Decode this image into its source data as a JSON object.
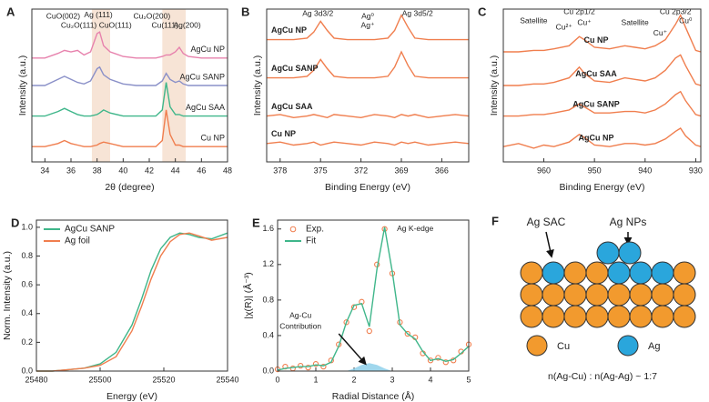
{
  "chart_data": [
    {
      "type": "line",
      "label": "A",
      "xlabel": "2θ (degree)",
      "ylabel": "Intensity (a.u.)",
      "legend": "inline",
      "xlim": [
        33,
        48
      ],
      "xticks": [
        34,
        36,
        38,
        40,
        42,
        44,
        46,
        48
      ],
      "ylim": [
        0,
        100
      ],
      "highlight_ranges": [
        [
          37.6,
          39.0
        ],
        [
          43.0,
          44.8
        ]
      ],
      "highlight_color": "#f7e4d6",
      "x": [
        33,
        34,
        35,
        35.5,
        36,
        36.5,
        37,
        37.5,
        38,
        38.2,
        38.5,
        39,
        40,
        41,
        42,
        42.5,
        43,
        43.3,
        43.6,
        44,
        44.3,
        44.6,
        45,
        46,
        47,
        48
      ],
      "series": [
        {
          "name": "AgCu NP",
          "color": "#e782ad",
          "values": [
            68,
            68,
            71,
            73,
            72,
            73,
            70,
            72,
            84,
            85,
            76,
            72,
            69,
            68,
            68,
            68,
            69,
            70,
            70,
            72,
            75,
            71,
            69,
            68,
            68,
            68
          ]
        },
        {
          "name": "AgCu SANP",
          "color": "#8a90c8",
          "values": [
            50,
            50,
            54,
            56,
            54,
            52,
            51,
            53,
            61,
            62,
            57,
            54,
            51,
            50,
            50,
            50,
            53,
            58,
            54,
            52,
            53,
            51,
            50,
            50,
            50,
            50
          ]
        },
        {
          "name": "AgCu SAA",
          "color": "#3fb68a",
          "values": [
            30,
            30,
            33,
            35,
            33,
            31,
            30,
            30,
            31,
            32,
            34,
            32,
            30,
            30,
            30,
            30,
            34,
            52,
            36,
            31,
            31,
            30,
            30,
            30,
            30,
            30
          ]
        },
        {
          "name": "Cu NP",
          "color": "#f07e4e",
          "values": [
            10,
            10,
            12,
            14,
            12,
            11,
            10,
            10,
            11,
            12,
            13,
            12,
            10,
            10,
            10,
            10,
            14,
            34,
            18,
            11,
            11,
            10,
            10,
            10,
            10,
            10
          ]
        }
      ],
      "annotations": [
        {
          "text": "CuO(002)",
          "x": 35.4,
          "y": 95
        },
        {
          "text": "Cu₂O(111)",
          "x": 36.6,
          "y": 89
        },
        {
          "text": "Ag (111)",
          "x": 38.1,
          "y": 96
        },
        {
          "text": "CuO(111)",
          "x": 39.4,
          "y": 89
        },
        {
          "text": "Cu₂O(200)",
          "x": 42.2,
          "y": 95
        },
        {
          "text": "Cu(111)",
          "x": 43.2,
          "y": 89
        },
        {
          "text": "Ag(200)",
          "x": 44.9,
          "y": 89
        }
      ]
    },
    {
      "type": "line",
      "label": "B",
      "xlabel": "Binding Energy (eV)",
      "ylabel": "Intensity (a.u.)",
      "legend": "inline",
      "xlim": [
        379,
        364
      ],
      "xticks": [
        378,
        375,
        372,
        369,
        366
      ],
      "ylim": [
        0,
        100
      ],
      "x": [
        379,
        378,
        377,
        376,
        375.5,
        375,
        374.5,
        374,
        373,
        372,
        371,
        370,
        369.5,
        369,
        368.5,
        368,
        367,
        366,
        365,
        364
      ],
      "series": [
        {
          "name": "AgCu NP",
          "color": "#f07e4e",
          "values": [
            80,
            80,
            80,
            81,
            85,
            92,
            86,
            81,
            80,
            80,
            80,
            81,
            86,
            96,
            88,
            81,
            80,
            80,
            80,
            80
          ]
        },
        {
          "name": "AgCu SANP",
          "color": "#f07e4e",
          "values": [
            55,
            55,
            55,
            56,
            60,
            67,
            61,
            56,
            55,
            55,
            55,
            56,
            62,
            72,
            63,
            56,
            55,
            55,
            55,
            55
          ]
        },
        {
          "name": "AgCu SAA",
          "color": "#f07e4e",
          "values": [
            30,
            31,
            29,
            30,
            31,
            30,
            29,
            31,
            30,
            29,
            31,
            30,
            29,
            31,
            30,
            31,
            29,
            30,
            31,
            30
          ]
        },
        {
          "name": "Cu NP",
          "color": "#f07e4e",
          "values": [
            12,
            13,
            11,
            12,
            13,
            11,
            12,
            13,
            12,
            11,
            13,
            12,
            11,
            13,
            12,
            13,
            11,
            12,
            13,
            12
          ]
        }
      ],
      "annotations": [
        {
          "text": "Ag 3d3/2",
          "x": 375.2,
          "y": 97
        },
        {
          "text": "Ag 3d5/2",
          "x": 367.8,
          "y": 97
        },
        {
          "text": "Ag⁰",
          "x": 371.5,
          "y": 95,
          "color": "#8a90c8"
        },
        {
          "text": "Ag⁺",
          "x": 371.5,
          "y": 89,
          "color": "#e782ad"
        }
      ]
    },
    {
      "type": "line",
      "label": "C",
      "xlabel": "Binding Energy (eV)",
      "ylabel": "Intensity (a.u.)",
      "legend": "inline",
      "xlim": [
        968,
        929
      ],
      "xticks": [
        960,
        950,
        940,
        930
      ],
      "ylim": [
        0,
        100
      ],
      "x": [
        968,
        965,
        962,
        960,
        958,
        955,
        953,
        952,
        950,
        947,
        944,
        942,
        940,
        938,
        936,
        934,
        933,
        932,
        930,
        929
      ],
      "series": [
        {
          "name": "Cu NP",
          "color": "#f07e4e",
          "values": [
            72,
            72,
            73,
            73,
            74,
            76,
            82,
            80,
            75,
            74,
            76,
            75,
            74,
            76,
            80,
            90,
            96,
            88,
            73,
            72
          ]
        },
        {
          "name": "AgCu SAA",
          "color": "#f07e4e",
          "values": [
            50,
            50,
            51,
            51,
            52,
            55,
            62,
            58,
            53,
            52,
            55,
            54,
            53,
            55,
            60,
            68,
            70,
            63,
            51,
            50
          ]
        },
        {
          "name": "AgCu SANP",
          "color": "#f07e4e",
          "values": [
            30,
            30,
            31,
            31,
            32,
            34,
            38,
            36,
            32,
            32,
            33,
            33,
            32,
            34,
            38,
            44,
            46,
            40,
            31,
            30
          ]
        },
        {
          "name": "AgCu NP",
          "color": "#f07e4e",
          "values": [
            10,
            12,
            9,
            11,
            10,
            13,
            18,
            16,
            11,
            10,
            12,
            12,
            11,
            12,
            15,
            20,
            22,
            17,
            11,
            10
          ]
        }
      ],
      "annotations": [
        {
          "text": "Satellite",
          "x": 962,
          "y": 92
        },
        {
          "text": "Cu 2p1/2",
          "x": 953,
          "y": 98
        },
        {
          "text": "Cu²⁺",
          "x": 956,
          "y": 88,
          "color": "#e782ad"
        },
        {
          "text": "Cu⁺",
          "x": 952,
          "y": 91,
          "color": "#3fb68a"
        },
        {
          "text": "Satellite",
          "x": 942,
          "y": 91
        },
        {
          "text": "Cu 2p3/2",
          "x": 934,
          "y": 98
        },
        {
          "text": "Cu⁰",
          "x": 932,
          "y": 92,
          "color": "#3fb68a"
        },
        {
          "text": "Cu⁺",
          "x": 937,
          "y": 84,
          "color": "#e782ad"
        }
      ]
    },
    {
      "type": "line",
      "label": "D",
      "xlabel": "Energy (eV)",
      "ylabel": "Norm. Intensity (a.u.)",
      "legend": "upper left",
      "xlim": [
        25480,
        25540
      ],
      "xticks": [
        25480,
        25500,
        25520,
        25540
      ],
      "ylim": [
        0,
        1.05
      ],
      "yticks": [
        {
          "value": 0,
          "label": "0.0"
        },
        0.2,
        0.4,
        0.6,
        0.8,
        {
          "value": 1,
          "label": "1.0"
        }
      ],
      "x": [
        25480,
        25485,
        25490,
        25495,
        25500,
        25505,
        25510,
        25513,
        25516,
        25519,
        25522,
        25525,
        25528,
        25531,
        25535,
        25540
      ],
      "series": [
        {
          "name": "AgCu SANP",
          "color": "#3fb68a",
          "values": [
            0,
            0,
            0.01,
            0.02,
            0.05,
            0.13,
            0.32,
            0.5,
            0.7,
            0.85,
            0.93,
            0.96,
            0.95,
            0.93,
            0.92,
            0.96
          ]
        },
        {
          "name": "Ag foil",
          "color": "#f07e4e",
          "values": [
            0,
            0,
            0.01,
            0.02,
            0.04,
            0.1,
            0.28,
            0.45,
            0.64,
            0.8,
            0.9,
            0.95,
            0.96,
            0.94,
            0.91,
            0.93
          ]
        }
      ]
    },
    {
      "type": "line",
      "label": "E",
      "xlabel": "Radial Distance (Å)",
      "ylabel": "|χ(R)| (Å⁻³)",
      "legend": "upper left",
      "xlim": [
        0,
        5
      ],
      "xticks": [
        0,
        1,
        2,
        3,
        4,
        5
      ],
      "ylim": [
        0,
        1.7
      ],
      "yticks": [
        {
          "value": 0,
          "label": "0.0"
        },
        0.4,
        0.8,
        1.2,
        1.6
      ],
      "x": [
        0,
        0.2,
        0.4,
        0.6,
        0.8,
        1.0,
        1.2,
        1.4,
        1.6,
        1.8,
        2.0,
        2.2,
        2.4,
        2.6,
        2.8,
        3.0,
        3.2,
        3.4,
        3.6,
        3.8,
        4.0,
        4.2,
        4.4,
        4.6,
        4.8,
        5.0
      ],
      "series": [
        {
          "name": "Exp.",
          "color": "#f07e4e",
          "style": "markers",
          "values": [
            0.02,
            0.05,
            0.03,
            0.06,
            0.04,
            0.08,
            0.05,
            0.12,
            0.3,
            0.55,
            0.72,
            0.78,
            0.45,
            1.2,
            1.6,
            1.1,
            0.55,
            0.42,
            0.38,
            0.2,
            0.12,
            0.15,
            0.1,
            0.12,
            0.22,
            0.3
          ]
        },
        {
          "name": "Fit",
          "color": "#3fb68a",
          "style": "line",
          "values": [
            0.01,
            0.03,
            0.04,
            0.05,
            0.05,
            0.07,
            0.06,
            0.1,
            0.28,
            0.55,
            0.74,
            0.76,
            0.5,
            1.15,
            1.62,
            1.12,
            0.52,
            0.42,
            0.36,
            0.22,
            0.12,
            0.14,
            0.11,
            0.13,
            0.2,
            0.28
          ]
        },
        {
          "color": "#8fd0ea",
          "style": "area",
          "x": [
            1.8,
            2.0,
            2.2,
            2.4,
            2.6,
            2.8,
            3.0
          ],
          "values": [
            0,
            0.03,
            0.07,
            0.09,
            0.07,
            0.03,
            0
          ]
        }
      ],
      "annotations": [
        {
          "text": "Ag K-edge",
          "x": 3.6,
          "y": 1.6
        },
        {
          "text": "Ag-Cu",
          "x": 0.6,
          "y": 0.62,
          "color": "#2aa6dc"
        },
        {
          "text": "Contribution",
          "x": 0.6,
          "y": 0.5,
          "color": "#2aa6dc"
        }
      ]
    }
  ],
  "diagram": {
    "label": "F",
    "ag_sac": "Ag SAC",
    "ag_nps": "Ag NPs",
    "legend": [
      "Cu",
      "Ag"
    ],
    "ratio": "n(Ag-Cu) : n(Ag-Ag) ~ 1:7"
  }
}
